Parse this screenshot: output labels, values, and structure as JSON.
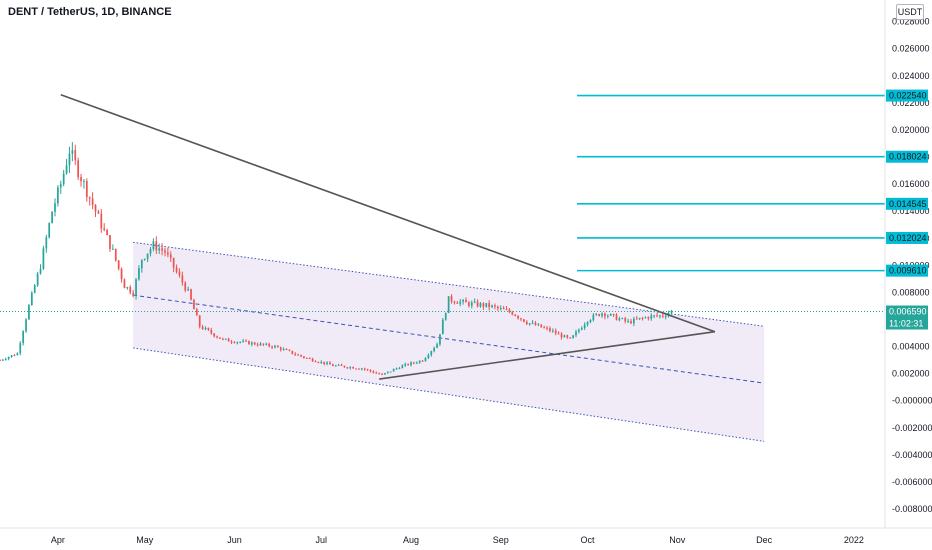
{
  "header": {
    "title": "DENT / TetherUS, 1D, BINANCE",
    "currency_button": "USDT"
  },
  "colors": {
    "up": "#26a69a",
    "down": "#ef5350",
    "level_line": "#00bcd4",
    "trend_line": "#555555",
    "channel_fill": "#ede7f6",
    "channel_border": "#3f51b5",
    "current_price_bg": "#26a69a"
  },
  "chart_data": {
    "type": "candlestick",
    "title": "DENT / TetherUS, 1D, BINANCE",
    "y_axis": {
      "range": [
        -0.0094,
        0.0296
      ],
      "ticks": [
        0.028,
        0.026,
        0.024,
        0.022,
        0.02,
        0.018,
        0.016,
        0.014,
        0.012,
        0.01,
        0.008,
        0.004,
        0.002,
        -0.0,
        -0.002,
        -0.004,
        -0.006,
        -0.008
      ],
      "tick_labels": [
        "0.028000",
        "0.026000",
        "0.024000",
        "0.022000",
        "0.020000",
        "0.018000",
        "0.016000",
        "0.014000",
        "0.012000",
        "0.010000",
        "0.008000",
        "0.004000",
        "0.002000",
        "-0.000000",
        "-0.002000",
        "-0.004000",
        "-0.006000",
        "-0.008000"
      ]
    },
    "x_axis": {
      "tick_labels": [
        "Apr",
        "May",
        "Jun",
        "Jul",
        "Aug",
        "Sep",
        "Oct",
        "Nov",
        "Dec",
        "2022"
      ],
      "tick_dates": [
        "2021-04-01",
        "2021-05-01",
        "2021-06-01",
        "2021-07-01",
        "2021-08-01",
        "2021-09-01",
        "2021-10-01",
        "2021-11-01",
        "2021-12-01",
        "2022-01-01"
      ],
      "range": [
        "2021-03-12",
        "2022-01-28"
      ]
    },
    "price_anchors": [
      [
        "2021-03-12",
        0.003
      ],
      [
        "2021-03-18",
        0.0035
      ],
      [
        "2021-03-22",
        0.007
      ],
      [
        "2021-03-26",
        0.01
      ],
      [
        "2021-03-30",
        0.014
      ],
      [
        "2021-04-02",
        0.016
      ],
      [
        "2021-04-05",
        0.0185
      ],
      [
        "2021-04-08",
        0.017
      ],
      [
        "2021-04-12",
        0.015
      ],
      [
        "2021-04-16",
        0.013
      ],
      [
        "2021-04-20",
        0.011
      ],
      [
        "2021-04-24",
        0.0085
      ],
      [
        "2021-04-27",
        0.008
      ],
      [
        "2021-04-30",
        0.0105
      ],
      [
        "2021-05-04",
        0.0115
      ],
      [
        "2021-05-08",
        0.011
      ],
      [
        "2021-05-12",
        0.0095
      ],
      [
        "2021-05-16",
        0.008
      ],
      [
        "2021-05-20",
        0.0055
      ],
      [
        "2021-05-24",
        0.005
      ],
      [
        "2021-05-28",
        0.0045
      ],
      [
        "2021-06-05",
        0.0043
      ],
      [
        "2021-06-15",
        0.004
      ],
      [
        "2021-06-25",
        0.0032
      ],
      [
        "2021-07-05",
        0.0026
      ],
      [
        "2021-07-15",
        0.0024
      ],
      [
        "2021-07-22",
        0.0019
      ],
      [
        "2021-07-28",
        0.0025
      ],
      [
        "2021-08-05",
        0.003
      ],
      [
        "2021-08-10",
        0.0042
      ],
      [
        "2021-08-14",
        0.0075
      ],
      [
        "2021-08-20",
        0.0072
      ],
      [
        "2021-08-28",
        0.007
      ],
      [
        "2021-09-05",
        0.0065
      ],
      [
        "2021-09-10",
        0.0058
      ],
      [
        "2021-09-18",
        0.0052
      ],
      [
        "2021-09-25",
        0.0045
      ],
      [
        "2021-10-01",
        0.006
      ],
      [
        "2021-10-06",
        0.0065
      ],
      [
        "2021-10-15",
        0.0058
      ],
      [
        "2021-10-22",
        0.0062
      ],
      [
        "2021-10-27",
        0.0063
      ],
      [
        "2021-10-30",
        0.00659
      ]
    ],
    "annotations": {
      "horizontal_levels": [
        {
          "price": 0.02254,
          "label": "0.022540"
        },
        {
          "price": 0.018024,
          "label": "0.018024"
        },
        {
          "price": 0.014545,
          "label": "0.014545"
        },
        {
          "price": 0.012024,
          "label": "0.012024"
        },
        {
          "price": 0.00961,
          "label": "0.009610"
        }
      ],
      "current_price": {
        "price": 0.00659,
        "label": "0.006590",
        "countdown": "11:02:31"
      },
      "descending_trendline": [
        [
          "2021-04-02",
          0.0226
        ],
        [
          "2021-11-14",
          0.0051
        ]
      ],
      "ascending_trendline": [
        [
          "2021-07-21",
          0.0016
        ],
        [
          "2021-11-14",
          0.0051
        ]
      ],
      "descending_channel": {
        "upper": [
          [
            "2021-04-27",
            0.0117
          ],
          [
            "2021-12-01",
            0.0055
          ]
        ],
        "middle": [
          [
            "2021-04-27",
            0.0078
          ],
          [
            "2021-12-01",
            0.0013
          ]
        ],
        "lower": [
          [
            "2021-04-27",
            0.0039
          ],
          [
            "2021-12-01",
            -0.003
          ]
        ]
      }
    }
  }
}
